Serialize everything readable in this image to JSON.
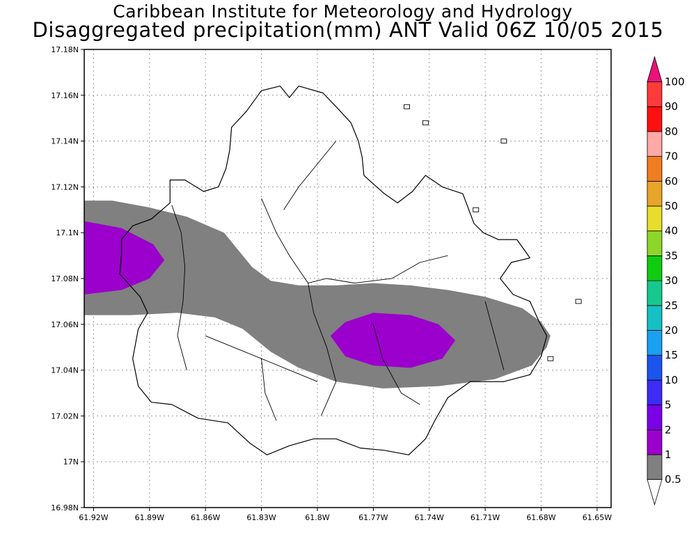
{
  "title": {
    "line1": "Caribbean Institute for Meteorology and Hydrology",
    "line2": "Disaggregated precipitation(mm) ANT Valid 06Z 10/05 2015"
  },
  "map": {
    "region": "Antigua",
    "lon_range": [
      -61.925,
      -61.6425
    ],
    "lat_range": [
      16.98,
      17.18
    ],
    "grid": true,
    "grid_style": "dotted",
    "y_ticks": [
      {
        "value": 17.18,
        "label": "17.18N"
      },
      {
        "value": 17.16,
        "label": "17.16N"
      },
      {
        "value": 17.14,
        "label": "17.14N"
      },
      {
        "value": 17.12,
        "label": "17.12N"
      },
      {
        "value": 17.1,
        "label": "17.1N"
      },
      {
        "value": 17.08,
        "label": "17.08N"
      },
      {
        "value": 17.06,
        "label": "17.06N"
      },
      {
        "value": 17.04,
        "label": "17.04N"
      },
      {
        "value": 17.02,
        "label": "17.02N"
      },
      {
        "value": 17.0,
        "label": "17N"
      },
      {
        "value": 16.98,
        "label": "16.98N"
      }
    ],
    "x_ticks": [
      {
        "value": -61.92,
        "label": "61.92W"
      },
      {
        "value": -61.89,
        "label": "61.89W"
      },
      {
        "value": -61.86,
        "label": "61.86W"
      },
      {
        "value": -61.83,
        "label": "61.83W"
      },
      {
        "value": -61.8,
        "label": "61.8W"
      },
      {
        "value": -61.77,
        "label": "61.77W"
      },
      {
        "value": -61.74,
        "label": "61.74W"
      },
      {
        "value": -61.71,
        "label": "61.71W"
      },
      {
        "value": -61.68,
        "label": "61.68W"
      },
      {
        "value": -61.65,
        "label": "61.65W"
      }
    ],
    "precip_areas": [
      {
        "level": "0.5-1",
        "color": "#808080",
        "points": [
          [
            -61.925,
            17.114
          ],
          [
            -61.91,
            17.114
          ],
          [
            -61.89,
            17.111
          ],
          [
            -61.87,
            17.107
          ],
          [
            -61.85,
            17.1
          ],
          [
            -61.845,
            17.095
          ],
          [
            -61.835,
            17.085
          ],
          [
            -61.825,
            17.079
          ],
          [
            -61.81,
            17.077
          ],
          [
            -61.79,
            17.077
          ],
          [
            -61.77,
            17.078
          ],
          [
            -61.75,
            17.077
          ],
          [
            -61.73,
            17.075
          ],
          [
            -61.71,
            17.072
          ],
          [
            -61.69,
            17.067
          ],
          [
            -61.68,
            17.061
          ],
          [
            -61.675,
            17.055
          ],
          [
            -61.677,
            17.05
          ],
          [
            -61.685,
            17.042
          ],
          [
            -61.705,
            17.036
          ],
          [
            -61.735,
            17.033
          ],
          [
            -61.765,
            17.032
          ],
          [
            -61.79,
            17.035
          ],
          [
            -61.81,
            17.041
          ],
          [
            -61.825,
            17.048
          ],
          [
            -61.84,
            17.058
          ],
          [
            -61.855,
            17.063
          ],
          [
            -61.875,
            17.065
          ],
          [
            -61.9,
            17.064
          ],
          [
            -61.925,
            17.064
          ]
        ]
      },
      {
        "level": "1-2",
        "color": "#9b00cc",
        "points": [
          [
            -61.925,
            17.105
          ],
          [
            -61.905,
            17.102
          ],
          [
            -61.888,
            17.095
          ],
          [
            -61.882,
            17.088
          ],
          [
            -61.89,
            17.08
          ],
          [
            -61.905,
            17.075
          ],
          [
            -61.925,
            17.073
          ]
        ]
      },
      {
        "level": "1-2",
        "color": "#9b00cc",
        "points": [
          [
            -61.793,
            17.055
          ],
          [
            -61.785,
            17.061
          ],
          [
            -61.77,
            17.065
          ],
          [
            -61.75,
            17.064
          ],
          [
            -61.735,
            17.06
          ],
          [
            -61.726,
            17.053
          ],
          [
            -61.733,
            17.045
          ],
          [
            -61.75,
            17.041
          ],
          [
            -61.77,
            17.042
          ],
          [
            -61.785,
            17.046
          ]
        ]
      }
    ],
    "island_outline": [
      [
        -61.905,
        17.097
      ],
      [
        -61.899,
        17.103
      ],
      [
        -61.889,
        17.106
      ],
      [
        -61.879,
        17.113
      ],
      [
        -61.879,
        17.123
      ],
      [
        -61.871,
        17.123
      ],
      [
        -61.861,
        17.118
      ],
      [
        -61.853,
        17.12
      ],
      [
        -61.849,
        17.128
      ],
      [
        -61.847,
        17.136
      ],
      [
        -61.846,
        17.146
      ],
      [
        -61.838,
        17.153
      ],
      [
        -61.83,
        17.162
      ],
      [
        -61.82,
        17.164
      ],
      [
        -61.815,
        17.159
      ],
      [
        -61.81,
        17.164
      ],
      [
        -61.797,
        17.161
      ],
      [
        -61.79,
        17.155
      ],
      [
        -61.782,
        17.148
      ],
      [
        -61.778,
        17.14
      ],
      [
        -61.776,
        17.133
      ],
      [
        -61.775,
        17.125
      ],
      [
        -61.771,
        17.122
      ],
      [
        -61.764,
        17.117
      ],
      [
        -61.757,
        17.113
      ],
      [
        -61.749,
        17.118
      ],
      [
        -61.742,
        17.125
      ],
      [
        -61.733,
        17.12
      ],
      [
        -61.722,
        17.117
      ],
      [
        -61.716,
        17.104
      ],
      [
        -61.711,
        17.1
      ],
      [
        -61.703,
        17.097
      ],
      [
        -61.693,
        17.097
      ],
      [
        -61.686,
        17.089
      ],
      [
        -61.696,
        17.087
      ],
      [
        -61.702,
        17.08
      ],
      [
        -61.695,
        17.073
      ],
      [
        -61.686,
        17.07
      ],
      [
        -61.681,
        17.061
      ],
      [
        -61.677,
        17.055
      ],
      [
        -61.68,
        17.046
      ],
      [
        -61.686,
        17.038
      ],
      [
        -61.7,
        17.035
      ],
      [
        -61.718,
        17.035
      ],
      [
        -61.73,
        17.028
      ],
      [
        -61.737,
        17.018
      ],
      [
        -61.742,
        17.01
      ],
      [
        -61.751,
        17.003
      ],
      [
        -61.764,
        17.005
      ],
      [
        -61.777,
        17.006
      ],
      [
        -61.79,
        17.01
      ],
      [
        -61.802,
        17.01
      ],
      [
        -61.815,
        17.007
      ],
      [
        -61.827,
        17.003
      ],
      [
        -61.836,
        17.008
      ],
      [
        -61.848,
        17.017
      ],
      [
        -61.864,
        17.019
      ],
      [
        -61.878,
        17.025
      ],
      [
        -61.889,
        17.026
      ],
      [
        -61.896,
        17.033
      ],
      [
        -61.899,
        17.045
      ],
      [
        -61.896,
        17.058
      ],
      [
        -61.891,
        17.065
      ],
      [
        -61.895,
        17.072
      ],
      [
        -61.906,
        17.082
      ],
      [
        -61.905,
        17.09
      ]
    ],
    "colorbar": {
      "levels": [
        {
          "label": "0.5",
          "color": "#ffffff"
        },
        {
          "label": "1",
          "color": "#808080"
        },
        {
          "label": "2",
          "color": "#9b00cc"
        },
        {
          "label": "5",
          "color": "#7a00e6"
        },
        {
          "label": "10",
          "color": "#3c2cf5"
        },
        {
          "label": "15",
          "color": "#1c55ee"
        },
        {
          "label": "20",
          "color": "#1aa0f0"
        },
        {
          "label": "25",
          "color": "#16c0c4"
        },
        {
          "label": "30",
          "color": "#16c88e"
        },
        {
          "label": "35",
          "color": "#10cc10"
        },
        {
          "label": "40",
          "color": "#8ed62a"
        },
        {
          "label": "50",
          "color": "#e8dd2c"
        },
        {
          "label": "60",
          "color": "#e8a52a"
        },
        {
          "label": "70",
          "color": "#f07d20"
        },
        {
          "label": "80",
          "color": "#ffa8a8"
        },
        {
          "label": "90",
          "color": "#ff1010"
        },
        {
          "label": "100",
          "color": "#ff3a3a"
        }
      ],
      "top_color": "#e8127a"
    }
  }
}
